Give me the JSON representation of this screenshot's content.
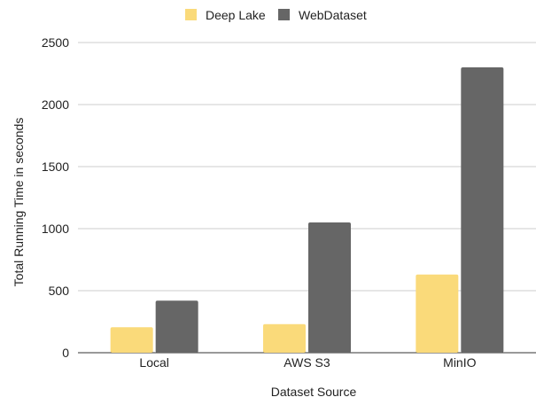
{
  "chart_data": {
    "type": "bar",
    "title": "",
    "xlabel": "Dataset Source",
    "ylabel": "Total Running Time in seconds",
    "categories": [
      "Local",
      "AWS S3",
      "MinIO"
    ],
    "series": [
      {
        "name": "Deep Lake",
        "color": "#fada7a",
        "values": [
          205,
          230,
          630
        ]
      },
      {
        "name": "WebDataset",
        "color": "#666666",
        "values": [
          420,
          1050,
          2300
        ]
      }
    ],
    "ylim": [
      0,
      2500
    ],
    "yticks": [
      0,
      500,
      1000,
      1500,
      2000,
      2500
    ],
    "grid": true,
    "legend": "top-center"
  }
}
